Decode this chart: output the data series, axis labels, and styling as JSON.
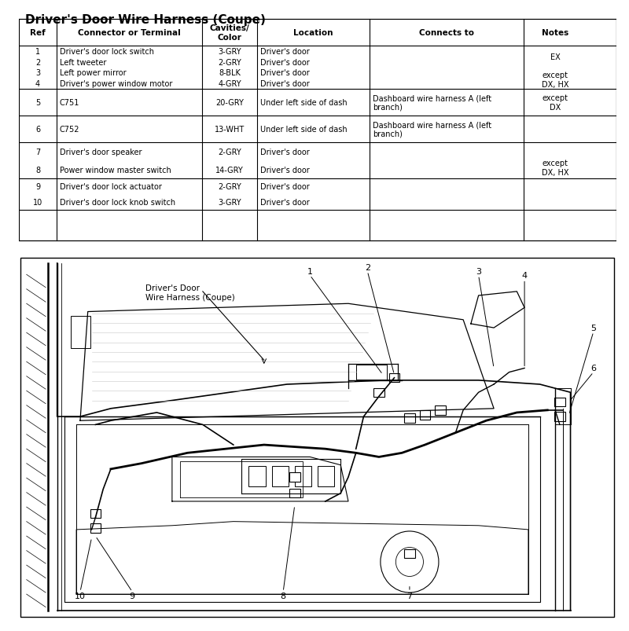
{
  "title": "Driver's Door Wire Harness (Coupe)",
  "table_headers": [
    "Ref",
    "Connector or Terminal",
    "Cavities/\nColor",
    "Location",
    "Connects to",
    "Notes"
  ],
  "table_rows": [
    [
      "1\n2\n3\n4",
      "Driver's door lock switch\nLeft tweeter\nLeft power mirror\nDriver's power window motor",
      "3-GRY\n2-GRY\n8-BLK\n4-GRY",
      "Driver's door\nDriver's door\nDriver's door\nDriver's door",
      "",
      "\n EX\n\nexcept\nDX, HX"
    ],
    [
      "5",
      "C751",
      "20-GRY",
      "Under left side of dash",
      "Dashboard wire harness A (left\nbranch)",
      "except\nDX"
    ],
    [
      "6",
      "C752",
      "13-WHT",
      "Under left side of dash",
      "Dashboard wire harness A (left\nbranch)",
      ""
    ],
    [
      "7\n8",
      "Driver's door speaker\nPower window master switch",
      "2-GRY\n14-GRY",
      "Driver's door\nDriver's door",
      "",
      "\nexcept\nDX, HX"
    ],
    [
      "9\n10",
      "Driver's door lock actuator\nDriver's door lock knob switch",
      "2-GRY\n3-GRY",
      "Driver's door\nDriver's door",
      "",
      ""
    ]
  ],
  "bg_color": "#ffffff"
}
